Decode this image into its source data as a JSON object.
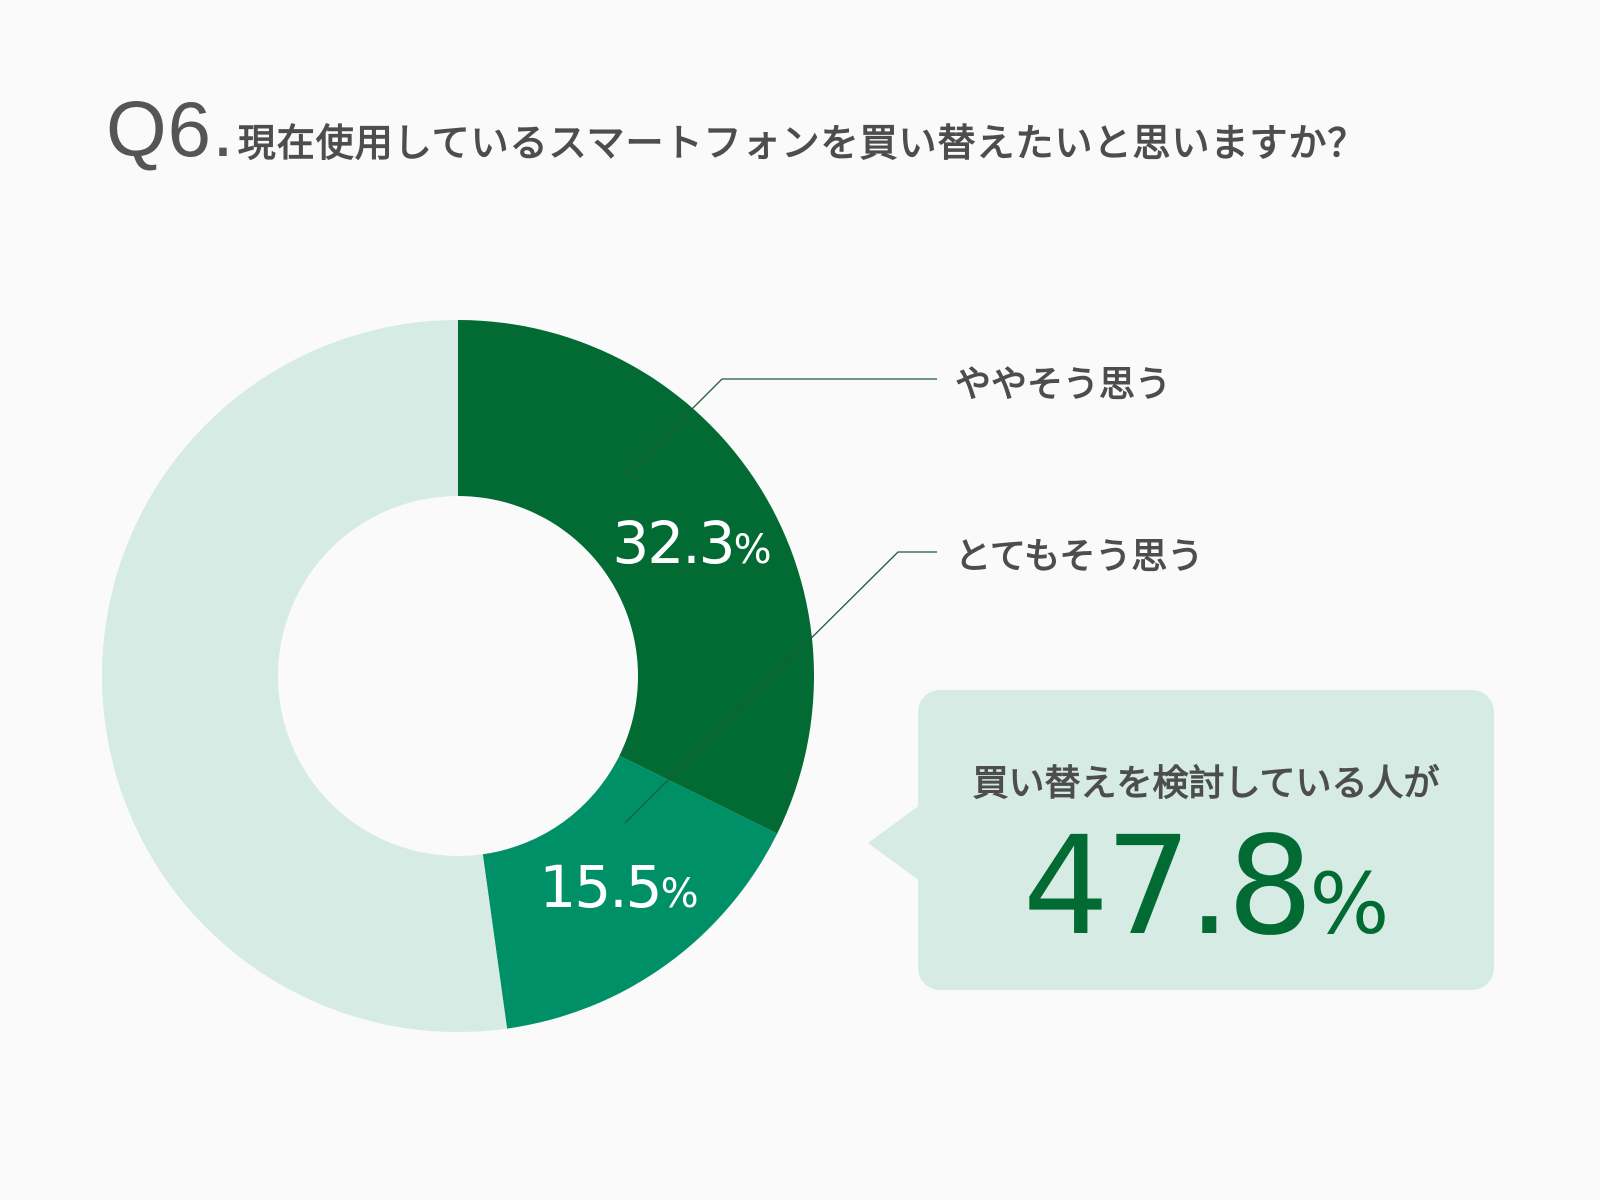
{
  "title": {
    "number": "Q6",
    "dot": ".",
    "text": "現在使用しているスマートフォンを買い替えたいと思いますか？"
  },
  "chart_data": {
    "type": "pie",
    "donut": true,
    "title": "Q6.現在使用しているスマートフォンを買い替えたいと思いますか？",
    "slices": [
      {
        "name": "ややそう思う",
        "value": 32.3,
        "label": "32.3",
        "unit": "%",
        "color": "#026b33",
        "labeled": true
      },
      {
        "name": "とてもそう思う",
        "value": 15.5,
        "label": "15.5",
        "unit": "%",
        "color": "#009067",
        "labeled": true
      },
      {
        "name": "",
        "value": 52.2,
        "label": "",
        "unit": "",
        "color": "#d5ebe3",
        "labeled": false
      }
    ],
    "start": "12 o'clock",
    "direction": "clockwise"
  },
  "callout": {
    "text": "買い替えを検討している人が",
    "value": "47.8",
    "unit": "%",
    "background": "#d5ebe3",
    "value_color": "#026b33"
  }
}
